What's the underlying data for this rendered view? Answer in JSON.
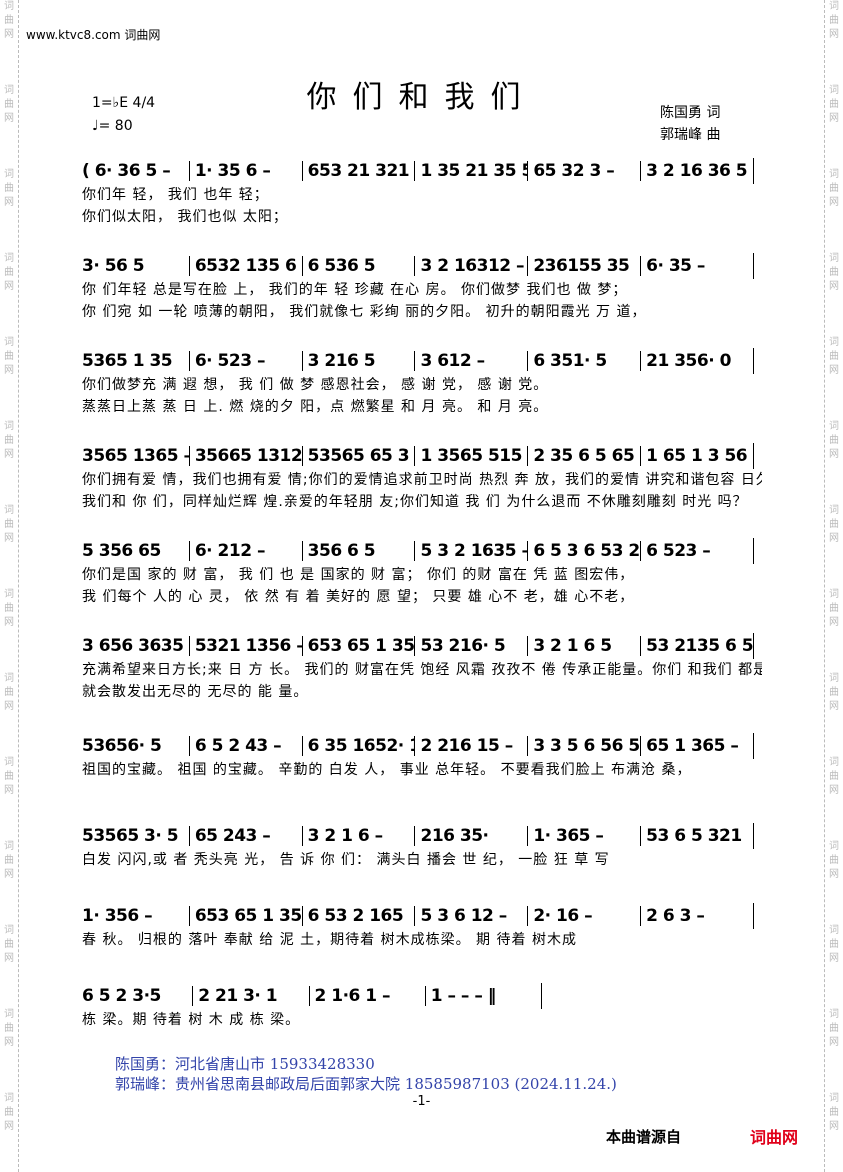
{
  "watermark": "www.ktvc8.com 词曲网",
  "side_text": "词曲网",
  "title": "你们和我们",
  "key": "1=♭E 4/4",
  "tempo": "♩= 80",
  "lyricist": "陈国勇  词",
  "composer": "郭瑞峰  曲",
  "rows": [
    {
      "measures": [
        "( 6· 36 5 –",
        "1· 35 6 –",
        "653 21 321 53",
        "1 35 21 35 5 –)",
        "65 32 3 –",
        "3 2 16 36 5 –"
      ],
      "lyrics": [
        "                                                              你们年 轻，  我们 也年 轻；",
        "                                                              你们似太阳，  我们也似 太阳；"
      ]
    },
    {
      "measures": [
        "3· 56 5",
        "6532 135 6 –",
        "6 536 5",
        "3 2 16312 –",
        "236155 35",
        "6· 35 –"
      ],
      "lyrics": [
        "你  们年轻  总是写在脸  上，   我们的年 轻  珍藏 在心  房。  你们做梦 我们也 做    梦；",
        "你  们宛 如  一轮 喷薄的朝阳，   我们就像七  彩绚 丽的夕阳。  初升的朝阳霞光   万    道，"
      ]
    },
    {
      "measures": [
        "5365 1 35",
        "6· 523 –",
        "3 216 5",
        "3 612 –",
        "6 351· 5",
        "21 356· 0"
      ],
      "lyrics": [
        "你们做梦充 满    遐       想，    我 们 做 梦  感恩社会，    感 谢 党，    感 谢 党。",
        "蒸蒸日上蒸 蒸    日       上.    燃 烧的夕 阳，点 燃繁星        和 月 亮。    和 月 亮。"
      ]
    },
    {
      "measures": [
        "3565 1365 –",
        "35665 1312",
        "53565 65 3 5 21",
        "1 3565 515 –",
        "2 35 6 5 65 35",
        "1 65 1 3 56 –"
      ],
      "lyrics": [
        "你们拥有爱 情，我们也拥有爱 情;你们的爱情追求前卫时尚 热烈 奔   放，我们的爱情 讲究和谐包容 日久天长。",
        "我们和 你 们，同样灿烂辉 煌.亲爱的年轻朋 友;你们知道 我   们   为什么退而 不休雕刻雕刻 时光 吗？"
      ]
    },
    {
      "measures": [
        "5 356 65",
        "6· 212 –",
        "356 6 5",
        "5 3 2 1635 –",
        "6 5 3 6 53 2·1",
        "6 523 –"
      ],
      "lyrics": [
        "你们是国 家的  财      富，   我 们 也 是  国家的  财 富；  你们 的财 富在 凭    蓝 图宏伟，",
        "我 们每个 人的  心      灵，    依 然 有 着  美好的  愿 望；  只要    雄 心不 老，雄 心不老，"
      ]
    },
    {
      "measures": [
        "3 656 3635",
        "5321 1356 – :‖",
        "653 65 1 3565",
        "53 216· 5",
        "3 2 1 6 5",
        "53 2135 6 5"
      ],
      "lyrics": [
        "充满希望来日方长;来 日 方 长。   我们的 财富在凭 饱经 风霜 孜孜不  倦 传承正能量。你们 和我们   都是",
        "就会散发出无尽的  无尽的 能  量。"
      ]
    },
    {
      "measures": [
        "53656· 5",
        "6 5 2 43 –",
        "6 35 1652· 1",
        "2 216 15 –",
        "3 3 5 6 56 5",
        "65 1 365 –"
      ],
      "lyrics": [
        "祖国的宝藏。  祖国 的宝藏。   辛勤的 白发  人，    事业 总年轻。  不要看我们脸上  布满沧     桑，"
      ]
    },
    {
      "measures": [
        "53565 3· 5",
        "65 243 –",
        "3 2 1 6 –",
        "216 35·",
        "1· 365 –",
        "53 6 5 321"
      ],
      "lyrics": [
        "白发 闪闪,或   者  秃头亮 光，    告 诉 你 们：   满头白 播会    世      纪，    一脸 狂 草 写"
      ]
    },
    {
      "measures": [
        "1· 356 –",
        "653 65 1 356",
        "6 53 2 165",
        "5 3 6 12 –",
        "2· 16 –",
        "2 6 3 –"
      ],
      "lyrics": [
        "春      秋。   归根的 落叶 奉献 给  泥 土，期待着    树木成栋梁。   期  待着      树木成"
      ]
    },
    {
      "measures": [
        "6 5 2 3·5",
        "2 21 3· 1",
        "2 1·6 1 –",
        "1 – – – ‖"
      ],
      "lyrics": [
        "栋 梁。期 待着 树 木 成        栋     梁。"
      ]
    }
  ],
  "footer": [
    "陈国勇：河北省唐山市      15933428330",
    "郭瑞峰：贵州省思南县邮政局后面郭家大院    18585987103     (2024.11.24.)"
  ],
  "page_number": "-1-",
  "source_label": "本曲谱源自",
  "brand": "词曲网"
}
